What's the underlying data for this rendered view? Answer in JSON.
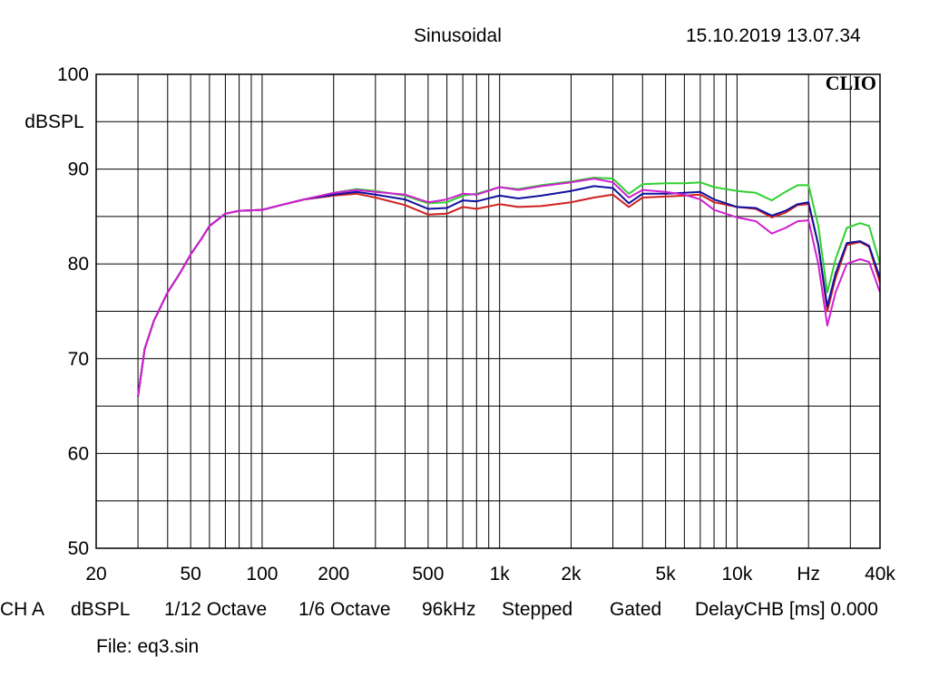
{
  "header": {
    "title": "Sinusoidal",
    "timestamp": "15.10.2019 13.07.34",
    "logo": "CLIO"
  },
  "status_bar": [
    "CH A",
    "dBSPL",
    "1/12 Octave",
    "1/6 Octave",
    "96kHz",
    "Stepped",
    "Gated",
    "DelayCHB [ms] 0.000"
  ],
  "file": "File: eq3.sin",
  "chart_data": {
    "type": "line",
    "title": "Sinusoidal",
    "ylabel": "dBSPL",
    "xlabel": "Hz",
    "xscale": "log",
    "xlim": [
      20,
      40000
    ],
    "ylim": [
      50,
      100
    ],
    "grid": true,
    "x_ticks": [
      {
        "value": 20,
        "label": "20"
      },
      {
        "value": 50,
        "label": "50"
      },
      {
        "value": 100,
        "label": "100"
      },
      {
        "value": 200,
        "label": "200"
      },
      {
        "value": 500,
        "label": "500"
      },
      {
        "value": 1000,
        "label": "1k"
      },
      {
        "value": 2000,
        "label": "2k"
      },
      {
        "value": 5000,
        "label": "5k"
      },
      {
        "value": 10000,
        "label": "10k"
      },
      {
        "value": 20000,
        "label": "Hz"
      },
      {
        "value": 40000,
        "label": "40k"
      }
    ],
    "y_ticks": [
      {
        "value": 100,
        "label": "100"
      },
      {
        "value": 90,
        "label": "90"
      },
      {
        "value": 80,
        "label": "80"
      },
      {
        "value": 70,
        "label": "70"
      },
      {
        "value": 60,
        "label": "60"
      },
      {
        "value": 50,
        "label": "50"
      }
    ],
    "series": [
      {
        "color": "#30d030",
        "points": [
          [
            30,
            66
          ],
          [
            32,
            71
          ],
          [
            35,
            74
          ],
          [
            40,
            77
          ],
          [
            45,
            79
          ],
          [
            50,
            81
          ],
          [
            55,
            82.5
          ],
          [
            60,
            84
          ],
          [
            70,
            85.3
          ],
          [
            80,
            85.6
          ],
          [
            100,
            85.7
          ],
          [
            120,
            86.2
          ],
          [
            150,
            86.8
          ],
          [
            200,
            87.5
          ],
          [
            250,
            87.9
          ],
          [
            300,
            87.7
          ],
          [
            400,
            87.2
          ],
          [
            500,
            86.4
          ],
          [
            600,
            86.5
          ],
          [
            700,
            87.2
          ],
          [
            800,
            87.4
          ],
          [
            1000,
            88.1
          ],
          [
            1200,
            87.9
          ],
          [
            1500,
            88.3
          ],
          [
            2000,
            88.7
          ],
          [
            2500,
            89.1
          ],
          [
            3000,
            89.0
          ],
          [
            3500,
            87.4
          ],
          [
            4000,
            88.4
          ],
          [
            5000,
            88.5
          ],
          [
            6000,
            88.5
          ],
          [
            7000,
            88.6
          ],
          [
            8000,
            88.1
          ],
          [
            10000,
            87.7
          ],
          [
            12000,
            87.5
          ],
          [
            14000,
            86.7
          ],
          [
            16000,
            87.6
          ],
          [
            18000,
            88.3
          ],
          [
            20000,
            88.3
          ],
          [
            22000,
            84.0
          ],
          [
            24000,
            77.0
          ],
          [
            26000,
            80.5
          ],
          [
            29000,
            83.8
          ],
          [
            33000,
            84.3
          ],
          [
            36000,
            84.0
          ],
          [
            40000,
            80.0
          ]
        ]
      },
      {
        "color": "#d02020",
        "points": [
          [
            30,
            66
          ],
          [
            32,
            71
          ],
          [
            35,
            74
          ],
          [
            40,
            77
          ],
          [
            45,
            79
          ],
          [
            50,
            81
          ],
          [
            55,
            82.5
          ],
          [
            60,
            84
          ],
          [
            70,
            85.3
          ],
          [
            80,
            85.6
          ],
          [
            100,
            85.7
          ],
          [
            120,
            86.2
          ],
          [
            150,
            86.8
          ],
          [
            200,
            87.2
          ],
          [
            250,
            87.4
          ],
          [
            300,
            87.0
          ],
          [
            400,
            86.2
          ],
          [
            500,
            85.2
          ],
          [
            600,
            85.3
          ],
          [
            700,
            86.0
          ],
          [
            800,
            85.8
          ],
          [
            1000,
            86.3
          ],
          [
            1200,
            86.0
          ],
          [
            1500,
            86.1
          ],
          [
            2000,
            86.5
          ],
          [
            2500,
            87.0
          ],
          [
            3000,
            87.3
          ],
          [
            3500,
            86.0
          ],
          [
            4000,
            87.0
          ],
          [
            5000,
            87.1
          ],
          [
            6000,
            87.2
          ],
          [
            7000,
            87.3
          ],
          [
            8000,
            86.5
          ],
          [
            10000,
            86.0
          ],
          [
            12000,
            85.8
          ],
          [
            14000,
            84.9
          ],
          [
            16000,
            85.4
          ],
          [
            18000,
            86.2
          ],
          [
            20000,
            86.3
          ],
          [
            22000,
            82.0
          ],
          [
            24000,
            75.0
          ],
          [
            26000,
            78.5
          ],
          [
            29000,
            82.0
          ],
          [
            33000,
            82.3
          ],
          [
            36000,
            81.8
          ],
          [
            40000,
            78.0
          ]
        ]
      },
      {
        "color": "#1010a0",
        "points": [
          [
            30,
            66
          ],
          [
            32,
            71
          ],
          [
            35,
            74
          ],
          [
            40,
            77
          ],
          [
            45,
            79
          ],
          [
            50,
            81
          ],
          [
            55,
            82.5
          ],
          [
            60,
            84
          ],
          [
            70,
            85.3
          ],
          [
            80,
            85.6
          ],
          [
            100,
            85.7
          ],
          [
            120,
            86.2
          ],
          [
            150,
            86.8
          ],
          [
            200,
            87.3
          ],
          [
            250,
            87.6
          ],
          [
            300,
            87.3
          ],
          [
            400,
            86.8
          ],
          [
            500,
            85.8
          ],
          [
            600,
            85.9
          ],
          [
            700,
            86.7
          ],
          [
            800,
            86.6
          ],
          [
            1000,
            87.2
          ],
          [
            1200,
            86.9
          ],
          [
            1500,
            87.2
          ],
          [
            2000,
            87.7
          ],
          [
            2500,
            88.2
          ],
          [
            3000,
            88.0
          ],
          [
            3500,
            86.4
          ],
          [
            4000,
            87.4
          ],
          [
            5000,
            87.4
          ],
          [
            6000,
            87.5
          ],
          [
            7000,
            87.6
          ],
          [
            8000,
            86.8
          ],
          [
            10000,
            86.0
          ],
          [
            12000,
            85.9
          ],
          [
            14000,
            85.1
          ],
          [
            16000,
            85.6
          ],
          [
            18000,
            86.3
          ],
          [
            20000,
            86.5
          ],
          [
            22000,
            82.0
          ],
          [
            24000,
            75.5
          ],
          [
            26000,
            79.0
          ],
          [
            29000,
            82.2
          ],
          [
            33000,
            82.4
          ],
          [
            36000,
            81.9
          ],
          [
            40000,
            78.5
          ]
        ]
      },
      {
        "color": "#d020d0",
        "points": [
          [
            30,
            66
          ],
          [
            32,
            71
          ],
          [
            35,
            74
          ],
          [
            40,
            77
          ],
          [
            45,
            79
          ],
          [
            50,
            81
          ],
          [
            55,
            82.5
          ],
          [
            60,
            84
          ],
          [
            70,
            85.3
          ],
          [
            80,
            85.6
          ],
          [
            100,
            85.7
          ],
          [
            120,
            86.2
          ],
          [
            150,
            86.8
          ],
          [
            200,
            87.5
          ],
          [
            250,
            87.8
          ],
          [
            300,
            87.6
          ],
          [
            400,
            87.3
          ],
          [
            500,
            86.5
          ],
          [
            600,
            86.8
          ],
          [
            700,
            87.4
          ],
          [
            800,
            87.3
          ],
          [
            1000,
            88.1
          ],
          [
            1200,
            87.8
          ],
          [
            1500,
            88.2
          ],
          [
            2000,
            88.6
          ],
          [
            2500,
            89.0
          ],
          [
            3000,
            88.6
          ],
          [
            3500,
            87.0
          ],
          [
            4000,
            87.8
          ],
          [
            5000,
            87.6
          ],
          [
            6000,
            87.3
          ],
          [
            7000,
            86.8
          ],
          [
            8000,
            85.7
          ],
          [
            10000,
            84.9
          ],
          [
            12000,
            84.5
          ],
          [
            14000,
            83.2
          ],
          [
            16000,
            83.8
          ],
          [
            18000,
            84.5
          ],
          [
            20000,
            84.6
          ],
          [
            22000,
            80.0
          ],
          [
            24000,
            73.5
          ],
          [
            26000,
            77.0
          ],
          [
            29000,
            80.0
          ],
          [
            33000,
            80.5
          ],
          [
            36000,
            80.2
          ],
          [
            40000,
            77.0
          ]
        ]
      }
    ]
  }
}
